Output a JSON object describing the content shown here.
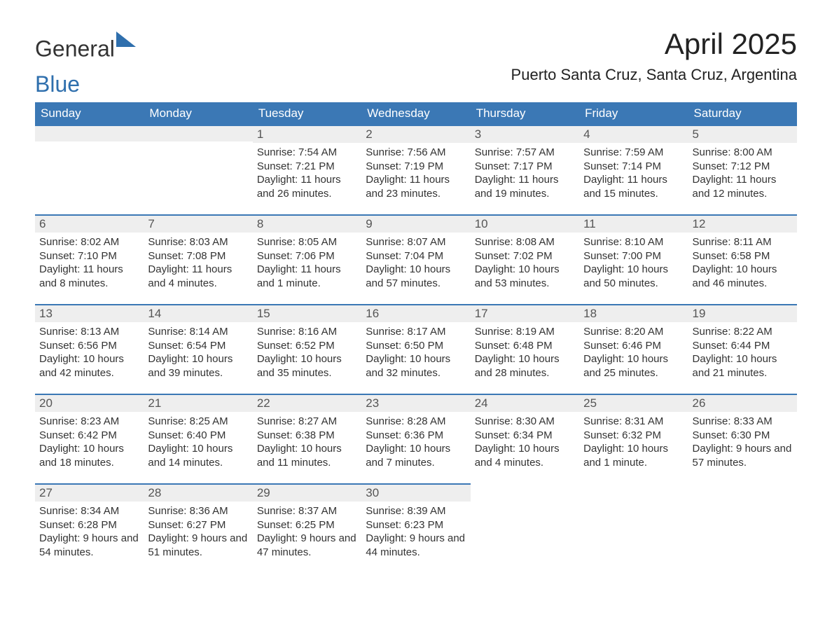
{
  "brand": {
    "part1": "General",
    "part2": "Blue"
  },
  "title": "April 2025",
  "location": "Puerto Santa Cruz, Santa Cruz, Argentina",
  "colors": {
    "header_bg": "#3b78b5",
    "header_text": "#ffffff",
    "daynum_bg": "#eeeeee",
    "text": "#333333",
    "page_bg": "#ffffff",
    "cell_border_top": "#3b78b5"
  },
  "dayNames": [
    "Sunday",
    "Monday",
    "Tuesday",
    "Wednesday",
    "Thursday",
    "Friday",
    "Saturday"
  ],
  "weeks": [
    [
      {
        "day": "",
        "sunrise": "",
        "sunset": "",
        "daylight": ""
      },
      {
        "day": "",
        "sunrise": "",
        "sunset": "",
        "daylight": ""
      },
      {
        "day": "1",
        "sunrise": "Sunrise: 7:54 AM",
        "sunset": "Sunset: 7:21 PM",
        "daylight": "Daylight: 11 hours and 26 minutes."
      },
      {
        "day": "2",
        "sunrise": "Sunrise: 7:56 AM",
        "sunset": "Sunset: 7:19 PM",
        "daylight": "Daylight: 11 hours and 23 minutes."
      },
      {
        "day": "3",
        "sunrise": "Sunrise: 7:57 AM",
        "sunset": "Sunset: 7:17 PM",
        "daylight": "Daylight: 11 hours and 19 minutes."
      },
      {
        "day": "4",
        "sunrise": "Sunrise: 7:59 AM",
        "sunset": "Sunset: 7:14 PM",
        "daylight": "Daylight: 11 hours and 15 minutes."
      },
      {
        "day": "5",
        "sunrise": "Sunrise: 8:00 AM",
        "sunset": "Sunset: 7:12 PM",
        "daylight": "Daylight: 11 hours and 12 minutes."
      }
    ],
    [
      {
        "day": "6",
        "sunrise": "Sunrise: 8:02 AM",
        "sunset": "Sunset: 7:10 PM",
        "daylight": "Daylight: 11 hours and 8 minutes."
      },
      {
        "day": "7",
        "sunrise": "Sunrise: 8:03 AM",
        "sunset": "Sunset: 7:08 PM",
        "daylight": "Daylight: 11 hours and 4 minutes."
      },
      {
        "day": "8",
        "sunrise": "Sunrise: 8:05 AM",
        "sunset": "Sunset: 7:06 PM",
        "daylight": "Daylight: 11 hours and 1 minute."
      },
      {
        "day": "9",
        "sunrise": "Sunrise: 8:07 AM",
        "sunset": "Sunset: 7:04 PM",
        "daylight": "Daylight: 10 hours and 57 minutes."
      },
      {
        "day": "10",
        "sunrise": "Sunrise: 8:08 AM",
        "sunset": "Sunset: 7:02 PM",
        "daylight": "Daylight: 10 hours and 53 minutes."
      },
      {
        "day": "11",
        "sunrise": "Sunrise: 8:10 AM",
        "sunset": "Sunset: 7:00 PM",
        "daylight": "Daylight: 10 hours and 50 minutes."
      },
      {
        "day": "12",
        "sunrise": "Sunrise: 8:11 AM",
        "sunset": "Sunset: 6:58 PM",
        "daylight": "Daylight: 10 hours and 46 minutes."
      }
    ],
    [
      {
        "day": "13",
        "sunrise": "Sunrise: 8:13 AM",
        "sunset": "Sunset: 6:56 PM",
        "daylight": "Daylight: 10 hours and 42 minutes."
      },
      {
        "day": "14",
        "sunrise": "Sunrise: 8:14 AM",
        "sunset": "Sunset: 6:54 PM",
        "daylight": "Daylight: 10 hours and 39 minutes."
      },
      {
        "day": "15",
        "sunrise": "Sunrise: 8:16 AM",
        "sunset": "Sunset: 6:52 PM",
        "daylight": "Daylight: 10 hours and 35 minutes."
      },
      {
        "day": "16",
        "sunrise": "Sunrise: 8:17 AM",
        "sunset": "Sunset: 6:50 PM",
        "daylight": "Daylight: 10 hours and 32 minutes."
      },
      {
        "day": "17",
        "sunrise": "Sunrise: 8:19 AM",
        "sunset": "Sunset: 6:48 PM",
        "daylight": "Daylight: 10 hours and 28 minutes."
      },
      {
        "day": "18",
        "sunrise": "Sunrise: 8:20 AM",
        "sunset": "Sunset: 6:46 PM",
        "daylight": "Daylight: 10 hours and 25 minutes."
      },
      {
        "day": "19",
        "sunrise": "Sunrise: 8:22 AM",
        "sunset": "Sunset: 6:44 PM",
        "daylight": "Daylight: 10 hours and 21 minutes."
      }
    ],
    [
      {
        "day": "20",
        "sunrise": "Sunrise: 8:23 AM",
        "sunset": "Sunset: 6:42 PM",
        "daylight": "Daylight: 10 hours and 18 minutes."
      },
      {
        "day": "21",
        "sunrise": "Sunrise: 8:25 AM",
        "sunset": "Sunset: 6:40 PM",
        "daylight": "Daylight: 10 hours and 14 minutes."
      },
      {
        "day": "22",
        "sunrise": "Sunrise: 8:27 AM",
        "sunset": "Sunset: 6:38 PM",
        "daylight": "Daylight: 10 hours and 11 minutes."
      },
      {
        "day": "23",
        "sunrise": "Sunrise: 8:28 AM",
        "sunset": "Sunset: 6:36 PM",
        "daylight": "Daylight: 10 hours and 7 minutes."
      },
      {
        "day": "24",
        "sunrise": "Sunrise: 8:30 AM",
        "sunset": "Sunset: 6:34 PM",
        "daylight": "Daylight: 10 hours and 4 minutes."
      },
      {
        "day": "25",
        "sunrise": "Sunrise: 8:31 AM",
        "sunset": "Sunset: 6:32 PM",
        "daylight": "Daylight: 10 hours and 1 minute."
      },
      {
        "day": "26",
        "sunrise": "Sunrise: 8:33 AM",
        "sunset": "Sunset: 6:30 PM",
        "daylight": "Daylight: 9 hours and 57 minutes."
      }
    ],
    [
      {
        "day": "27",
        "sunrise": "Sunrise: 8:34 AM",
        "sunset": "Sunset: 6:28 PM",
        "daylight": "Daylight: 9 hours and 54 minutes."
      },
      {
        "day": "28",
        "sunrise": "Sunrise: 8:36 AM",
        "sunset": "Sunset: 6:27 PM",
        "daylight": "Daylight: 9 hours and 51 minutes."
      },
      {
        "day": "29",
        "sunrise": "Sunrise: 8:37 AM",
        "sunset": "Sunset: 6:25 PM",
        "daylight": "Daylight: 9 hours and 47 minutes."
      },
      {
        "day": "30",
        "sunrise": "Sunrise: 8:39 AM",
        "sunset": "Sunset: 6:23 PM",
        "daylight": "Daylight: 9 hours and 44 minutes."
      },
      {
        "day": "",
        "sunrise": "",
        "sunset": "",
        "daylight": ""
      },
      {
        "day": "",
        "sunrise": "",
        "sunset": "",
        "daylight": ""
      },
      {
        "day": "",
        "sunrise": "",
        "sunset": "",
        "daylight": ""
      }
    ]
  ]
}
